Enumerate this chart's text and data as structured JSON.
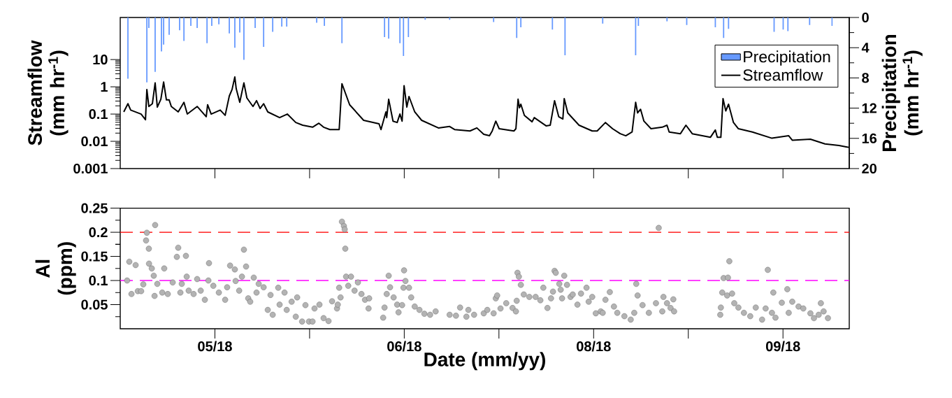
{
  "chart_data": [
    {
      "type": "line",
      "ylabel": "Streamflow (mm hr$^{-1}$)",
      "y2label": "Precipitation (mm hr$^{-1}$)",
      "xlim": [
        "2018-04-30",
        "2018-10-01"
      ],
      "ylim": [
        0.001,
        350
      ],
      "yticks": [
        0.001,
        0.01,
        0.1,
        1,
        10
      ],
      "log": "y",
      "y2lim": [
        20,
        0
      ],
      "y2ticks": [
        0,
        4,
        8,
        12,
        16,
        20
      ],
      "legend": "top right",
      "tick_labels": "y",
      "series": [
        {
          "name": "Precipitation",
          "type": "bar",
          "axis": "y2",
          "color": "#6699ff",
          "x": [
            "2018-05-01T15:00",
            "2018-05-05T15:00",
            "2018-05-06T01:00",
            "2018-05-07T09:00",
            "2018-05-08T17:00",
            "2018-05-09T04:00",
            "2018-05-10T08:00",
            "2018-05-12T13:00",
            "2018-05-13T11:00",
            "2018-05-14T22:00",
            "2018-05-16T06:00",
            "2018-05-18T08:00",
            "2018-05-19T08:00",
            "2018-05-20T20:00",
            "2018-05-23T01:00",
            "2018-05-24T05:00",
            "2018-05-25T06:00",
            "2018-05-26T03:00",
            "2018-05-28T12:00",
            "2018-05-30T07:00",
            "2018-06-01T05:00",
            "2018-06-03T03:00",
            "2018-06-04T04:00",
            "2018-06-10T12:00",
            "2018-06-12T03:00",
            "2018-06-15T20:00",
            "2018-06-24T20:00",
            "2018-06-25T17:00",
            "2018-06-28T02:00",
            "2018-06-28T20:00",
            "2018-06-29T21:00",
            "2018-07-03T10:00",
            "2018-07-08T14:00",
            "2018-07-17T21:00",
            "2018-07-22T18:00",
            "2018-07-23T15:00",
            "2018-07-30T07:00",
            "2018-08-01T23:00",
            "2018-08-09T22:00",
            "2018-08-16T21:00",
            "2018-08-17T11:00",
            "2018-08-23T12:00",
            "2018-08-27T16:00",
            "2018-09-02T17:00",
            "2018-09-04T11:00",
            "2018-09-05T12:00",
            "2018-09-15T03:00",
            "2018-09-17T01:00",
            "2018-09-18T01:00",
            "2018-09-22T15:00",
            "2018-09-27T09:00"
          ],
          "values": [
            8.1,
            8.6,
            1.4,
            7.2,
            4.5,
            3.6,
            2.3,
            1.7,
            3.1,
            1.1,
            1.4,
            3.4,
            1.1,
            0.9,
            2.1,
            4.0,
            2.0,
            5.6,
            1.4,
            3.9,
            1.9,
            1.2,
            1.2,
            0.7,
            1.1,
            3.4,
            2.6,
            2.8,
            3.4,
            5.1,
            2.6,
            0.3,
            0.3,
            0.6,
            2.7,
            1.3,
            1.6,
            5.0,
            0.8,
            5.0,
            1.1,
            0.5,
            1.0,
            1.3,
            2.7,
            1.5,
            1.9,
            1.6,
            1.8,
            1.0,
            1.1
          ]
        },
        {
          "name": "Streamflow",
          "type": "line",
          "color": "#000000",
          "x": [
            "2018-04-30T18:00",
            "2018-05-01T15:00",
            "2018-05-02T05:00",
            "2018-05-04T10:00",
            "2018-05-05T08:00",
            "2018-05-05T15:00",
            "2018-05-06T01:00",
            "2018-05-06T19:00",
            "2018-05-07T09:00",
            "2018-05-07T20:00",
            "2018-05-08T14:00",
            "2018-05-09T04:00",
            "2018-05-09T18:00",
            "2018-05-10T08:00",
            "2018-05-10T19:00",
            "2018-05-12T06:00",
            "2018-05-13T11:00",
            "2018-05-14T04:00",
            "2018-05-16T06:00",
            "2018-05-18T04:00",
            "2018-05-18T11:00",
            "2018-05-19T05:00",
            "2018-05-21T03:00",
            "2018-05-22T04:00",
            "2018-05-23T01:00",
            "2018-05-23T15:00",
            "2018-05-24T05:00",
            "2018-05-24T12:00",
            "2018-05-25T06:00",
            "2018-05-26T03:00",
            "2018-05-26T18:00",
            "2018-05-28T01:00",
            "2018-05-28T19:00",
            "2018-05-29T13:00",
            "2018-05-30T07:00",
            "2018-05-31T04:00",
            "2018-06-02T16:00",
            "2018-06-04T07:00",
            "2018-06-06T02:00",
            "2018-06-07T13:00",
            "2018-06-09T15:00",
            "2018-06-10T23:00",
            "2018-06-11T23:00",
            "2018-06-13T07:00",
            "2018-06-15T06:00",
            "2018-06-15T20:00",
            "2018-06-17T11:00",
            "2018-06-20T10:00",
            "2018-06-23T16:00",
            "2018-06-24T02:00",
            "2018-06-25T03:00",
            "2018-06-25T07:00",
            "2018-06-25T17:00",
            "2018-06-26T15:00",
            "2018-06-27T12:00",
            "2018-06-28T02:00",
            "2018-06-28T13:00",
            "2018-06-28T23:00",
            "2018-06-29T13:00",
            "2018-06-30T00:00",
            "2018-07-01T05:00",
            "2018-07-02T16:00",
            "2018-07-06T05:00",
            "2018-07-08T14:00",
            "2018-07-09T15:00",
            "2018-07-12T21:00",
            "2018-07-14T08:00",
            "2018-07-15T19:00",
            "2018-07-17T00:00",
            "2018-07-17T14:00",
            "2018-07-18T08:00",
            "2018-07-19T01:00",
            "2018-07-22T04:00",
            "2018-07-22T14:00",
            "2018-07-23T01:00",
            "2018-07-23T08:00",
            "2018-07-23T15:00",
            "2018-07-24T09:00",
            "2018-07-26T00:00",
            "2018-07-26T11:00",
            "2018-07-28T23:00",
            "2018-07-29T20:00",
            "2018-07-30T18:00",
            "2018-07-31T15:00",
            "2018-08-01T12:00",
            "2018-08-01T19:00",
            "2018-08-02T13:00",
            "2018-08-04T22:00",
            "2018-08-07T17:00",
            "2018-08-08T18:00",
            "2018-08-10T12:00",
            "2018-08-12T00:00",
            "2018-08-13T15:00",
            "2018-08-14T19:00",
            "2018-08-16T03:00",
            "2018-08-16T21:00",
            "2018-08-17T07:00",
            "2018-08-17T22:00",
            "2018-08-18T15:00",
            "2018-08-20T03:00",
            "2018-08-22T12:00",
            "2018-08-23T12:00",
            "2018-08-23T23:00",
            "2018-08-26T08:00",
            "2018-08-27T12:00",
            "2018-08-28T20:00",
            "2018-09-01T16:00",
            "2018-09-02T17:00",
            "2018-09-03T03:00",
            "2018-09-03T21:00",
            "2018-09-04T08:00",
            "2018-09-04T22:00",
            "2018-09-05T12:00",
            "2018-09-06T13:00",
            "2018-09-07T14:00",
            "2018-09-10T13:00",
            "2018-09-14T16:00",
            "2018-09-18T05:00",
            "2018-09-18T23:00",
            "2018-09-22T19:00",
            "2018-09-25T21:00",
            "2018-09-28T20:00",
            "2018-09-30T22:00"
          ],
          "values": [
            0.12,
            0.24,
            0.14,
            0.1,
            0.062,
            0.8,
            0.19,
            0.24,
            1.4,
            0.18,
            0.35,
            1.5,
            0.33,
            0.33,
            0.19,
            0.12,
            0.27,
            0.1,
            0.19,
            0.08,
            0.22,
            0.1,
            0.14,
            0.09,
            0.46,
            0.8,
            2.3,
            0.85,
            0.27,
            1.4,
            0.39,
            0.19,
            0.31,
            0.16,
            0.24,
            0.12,
            0.074,
            0.1,
            0.049,
            0.039,
            0.033,
            0.046,
            0.033,
            0.027,
            0.027,
            1.3,
            0.22,
            0.059,
            0.044,
            0.027,
            0.12,
            0.074,
            0.35,
            0.055,
            0.049,
            0.1,
            0.055,
            1.1,
            0.18,
            0.44,
            0.12,
            0.059,
            0.031,
            0.035,
            0.027,
            0.024,
            0.031,
            0.018,
            0.016,
            0.024,
            0.055,
            0.029,
            0.024,
            0.029,
            0.35,
            0.17,
            0.23,
            0.089,
            0.052,
            0.074,
            0.037,
            0.039,
            0.31,
            0.08,
            0.066,
            0.37,
            0.11,
            0.039,
            0.024,
            0.024,
            0.049,
            0.029,
            0.019,
            0.016,
            0.022,
            0.27,
            0.11,
            0.15,
            0.055,
            0.029,
            0.033,
            0.039,
            0.022,
            0.019,
            0.039,
            0.019,
            0.014,
            0.026,
            0.014,
            0.014,
            0.37,
            0.13,
            0.23,
            0.049,
            0.029,
            0.022,
            0.013,
            0.016,
            0.011,
            0.012,
            0.008,
            0.007,
            0.006
          ]
        }
      ]
    },
    {
      "type": "scatter",
      "ylabel": "Al (ppm)",
      "xlabel": "Date (mm/yy)",
      "xlim": [
        "2018-04-30",
        "2018-10-01"
      ],
      "xticks": [
        {
          "value": "2018-05-20",
          "label": "05/18"
        },
        {
          "value": "2018-06-09",
          "label": null
        },
        {
          "value": "2018-06-29",
          "label": "06/18"
        },
        {
          "value": "2018-07-19",
          "label": null
        },
        {
          "value": "2018-08-08",
          "label": "08/18"
        },
        {
          "value": "2018-08-28",
          "label": null
        },
        {
          "value": "2018-09-17",
          "label": "09/18"
        }
      ],
      "ylim": [
        0,
        0.25
      ],
      "yticks": [
        0.05,
        0.1,
        0.15,
        0.2,
        0.25
      ],
      "ref_lines": [
        {
          "axis": "y",
          "value": 0.2,
          "color": "#ff0000",
          "line_style": "dashed"
        },
        {
          "axis": "y",
          "value": 0.1,
          "color": "#ff00ff",
          "line_style": "dashed"
        }
      ],
      "series": [
        {
          "color": "#b3b3b3",
          "x": [
            "2018-05-01T11:00",
            "2018-05-01T22:00",
            "2018-05-02T09:00",
            "2018-05-03T06:00",
            "2018-05-03T17:00",
            "2018-05-04T10:00",
            "2018-05-04T21:00",
            "2018-05-05T15:00",
            "2018-05-05T11:00",
            "2018-05-06T01:00",
            "2018-05-06T02:00",
            "2018-05-06T16:00",
            "2018-05-07T02:00",
            "2018-05-07T06:00",
            "2018-05-07T09:00",
            "2018-05-07T20:00",
            "2018-05-08T21:00",
            "2018-05-09T07:00",
            "2018-05-10T01:00",
            "2018-05-11T02:00",
            "2018-05-11T23:00",
            "2018-05-12T06:00",
            "2018-05-12T17:00",
            "2018-05-13T00:00",
            "2018-05-13T21:00",
            "2018-05-14T01:00",
            "2018-05-14T11:00",
            "2018-05-15T12:00",
            "2018-05-16T06:00",
            "2018-05-17T00:00",
            "2018-05-17T21:00",
            "2018-05-18T18:00",
            "2018-05-18T15:00",
            "2018-05-19T16:00",
            "2018-05-20T20:00",
            "2018-05-22T04:00",
            "2018-05-22T14:00",
            "2018-05-23T05:00",
            "2018-05-24T05:00",
            "2018-05-24T09:00",
            "2018-05-25T03:00",
            "2018-05-25T17:00",
            "2018-05-26T03:00",
            "2018-05-26T14:00",
            "2018-05-27T01:00",
            "2018-05-27T11:00",
            "2018-05-28T05:00",
            "2018-05-28T19:00",
            "2018-05-29T06:00",
            "2018-05-30T07:00",
            "2018-05-31T04:00",
            "2018-05-31T18:00",
            "2018-06-01T05:00",
            "2018-06-02T09:00",
            "2018-06-02T16:00",
            "2018-06-03T17:00",
            "2018-06-04T04:00",
            "2018-06-05T05:00",
            "2018-06-06T02:00",
            "2018-06-06T09:00",
            "2018-06-07T10:00",
            "2018-06-08T03:00",
            "2018-06-08T21:00",
            "2018-06-09T15:00",
            "2018-06-10T01:00",
            "2018-06-11T02:00",
            "2018-06-11T23:00",
            "2018-06-13T00:00",
            "2018-06-13T18:00",
            "2018-06-14T19:00",
            "2018-06-14T23:00",
            "2018-06-15T13:00",
            "2018-06-15T06:00",
            "2018-06-15T20:00",
            "2018-06-16T06:00",
            "2018-06-16T10:00",
            "2018-06-16T13:00",
            "2018-06-16T17:00",
            "2018-06-17T04:00",
            "2018-06-17T18:00",
            "2018-06-18T12:00",
            "2018-06-19T05:00",
            "2018-06-19T23:00",
            "2018-06-20T17:00",
            "2018-06-21T11:00",
            "2018-06-21T14:00",
            "2018-06-24T13:00",
            "2018-06-24T20:00",
            "2018-06-25T07:00",
            "2018-06-25T17:00",
            "2018-06-26T00:00",
            "2018-06-26T18:00",
            "2018-06-27T12:00",
            "2018-06-27T19:00",
            "2018-06-28T13:00",
            "2018-06-28T23:00",
            "2018-06-28T20:00",
            "2018-06-29T06:00",
            "2018-06-30T00:00",
            "2018-06-30T11:00",
            "2018-07-01T05:00",
            "2018-07-02T05:00",
            "2018-07-03T06:00",
            "2018-07-04T11:00",
            "2018-07-05T15:00",
            "2018-07-08T14:00",
            "2018-07-09T22:00",
            "2018-07-10T19:00",
            "2018-07-12T03:00",
            "2018-07-12T13:00",
            "2018-07-13T18:00",
            "2018-07-15T19:00",
            "2018-07-16T13:00",
            "2018-07-17T21:00",
            "2018-07-18T08:00",
            "2018-07-18T15:00",
            "2018-07-19T08:00",
            "2018-07-20T13:00",
            "2018-07-21T21:00",
            "2018-07-22T14:00",
            "2018-07-22T18:00",
            "2018-07-22T22:00",
            "2018-07-23T05:00",
            "2018-07-23T15:00",
            "2018-07-24T06:00",
            "2018-07-25T10:00",
            "2018-07-26T18:00",
            "2018-07-27T18:00",
            "2018-07-28T09:00",
            "2018-07-29T06:00",
            "2018-07-30T00:00",
            "2018-07-30T10:00",
            "2018-07-30T18:00",
            "2018-07-31T00:00",
            "2018-07-31T18:00",
            "2018-08-01T01:00",
            "2018-08-01T08:00",
            "2018-08-01T19:00",
            "2018-08-02T09:00",
            "2018-08-03T03:00",
            "2018-08-03T14:00",
            "2018-08-04T14:00",
            "2018-08-05T08:00",
            "2018-08-06T12:00",
            "2018-08-06T23:00",
            "2018-08-07T17:00",
            "2018-08-08T11:00",
            "2018-08-09T12:00",
            "2018-08-09T22:00",
            "2018-08-10T12:00",
            "2018-08-11T10:00",
            "2018-08-12T07:00",
            "2018-08-13T00:00",
            "2018-08-14T12:00",
            "2018-08-15T20:00",
            "2018-08-16T14:00",
            "2018-08-17T00:00",
            "2018-08-17T07:00",
            "2018-08-18T08:00",
            "2018-08-19T16:00",
            "2018-08-21T04:00",
            "2018-08-21T18:00",
            "2018-08-22T12:00",
            "2018-08-22T18:00",
            "2018-08-23T12:00",
            "2018-08-24T06:00",
            "2018-08-24T20:00",
            "2018-08-25T00:00",
            "2018-09-03T18:00",
            "2018-09-03T21:00",
            "2018-09-04T04:00",
            "2018-09-04T11:00",
            "2018-09-05T09:00",
            "2018-09-05T16:00",
            "2018-09-05T05:00",
            "2018-09-06T06:00",
            "2018-09-06T17:00",
            "2018-09-07T14:00",
            "2018-09-08T18:00",
            "2018-09-10T02:00",
            "2018-09-11T06:00",
            "2018-09-12T14:00",
            "2018-09-13T08:00",
            "2018-09-13T19:00",
            "2018-09-14T16:00",
            "2018-09-14T23:00",
            "2018-09-15T10:00",
            "2018-09-16T18:00",
            "2018-09-17T22:00",
            "2018-09-18T05:00",
            "2018-09-18T23:00",
            "2018-09-20T07:00",
            "2018-09-21T07:00",
            "2018-09-22T19:00",
            "2018-09-23T13:00",
            "2018-09-24T13:00",
            "2018-09-25T00:00",
            "2018-09-25T14:00",
            "2018-09-26T12:00"
          ],
          "values": [
            0.1,
            0.139,
            0.072,
            0.132,
            0.078,
            0.078,
            0.092,
            0.199,
            0.183,
            0.166,
            0.135,
            0.125,
            0.11,
            0.068,
            0.215,
            0.093,
            0.075,
            0.125,
            0.072,
            0.096,
            0.149,
            0.168,
            0.075,
            0.093,
            0.151,
            0.108,
            0.079,
            0.072,
            0.103,
            0.079,
            0.06,
            0.136,
            0.1,
            0.089,
            0.075,
            0.06,
            0.086,
            0.131,
            0.123,
            0.099,
            0.079,
            0.108,
            0.164,
            0.129,
            0.063,
            0.056,
            0.106,
            0.075,
            0.093,
            0.086,
            0.039,
            0.07,
            0.029,
            0.085,
            0.05,
            0.075,
            0.039,
            0.056,
            0.025,
            0.065,
            0.015,
            0.049,
            0.015,
            0.015,
            0.042,
            0.05,
            0.022,
            0.016,
            0.057,
            0.042,
            0.05,
            0.065,
            0.085,
            0.222,
            0.213,
            0.206,
            0.166,
            0.108,
            0.089,
            0.108,
            0.079,
            0.096,
            0.072,
            0.06,
            0.042,
            0.063,
            0.023,
            0.044,
            0.072,
            0.11,
            0.086,
            0.065,
            0.05,
            0.034,
            0.049,
            0.121,
            0.085,
            0.099,
            0.085,
            0.065,
            0.046,
            0.039,
            0.031,
            0.029,
            0.036,
            0.029,
            0.027,
            0.044,
            0.025,
            0.039,
            0.029,
            0.032,
            0.039,
            0.032,
            0.063,
            0.069,
            0.042,
            0.053,
            0.043,
            0.036,
            0.058,
            0.116,
            0.108,
            0.091,
            0.071,
            0.066,
            0.066,
            0.059,
            0.085,
            0.043,
            0.063,
            0.077,
            0.12,
            0.116,
            0.093,
            0.081,
            0.063,
            0.11,
            0.091,
            0.066,
            0.071,
            0.05,
            0.073,
            0.085,
            0.056,
            0.066,
            0.032,
            0.036,
            0.033,
            0.06,
            0.076,
            0.046,
            0.033,
            0.026,
            0.019,
            0.033,
            0.093,
            0.069,
            0.049,
            0.033,
            0.053,
            0.209,
            0.036,
            0.066,
            0.053,
            0.043,
            0.061,
            0.036,
            0.029,
            0.044,
            0.075,
            0.105,
            0.106,
            0.14,
            0.069,
            0.073,
            0.053,
            0.044,
            0.033,
            0.026,
            0.044,
            0.019,
            0.042,
            0.122,
            0.033,
            0.075,
            0.023,
            0.054,
            0.082,
            0.033,
            0.056,
            0.046,
            0.042,
            0.032,
            0.022,
            0.029,
            0.053,
            0.036,
            0.022
          ]
        }
      ]
    }
  ]
}
